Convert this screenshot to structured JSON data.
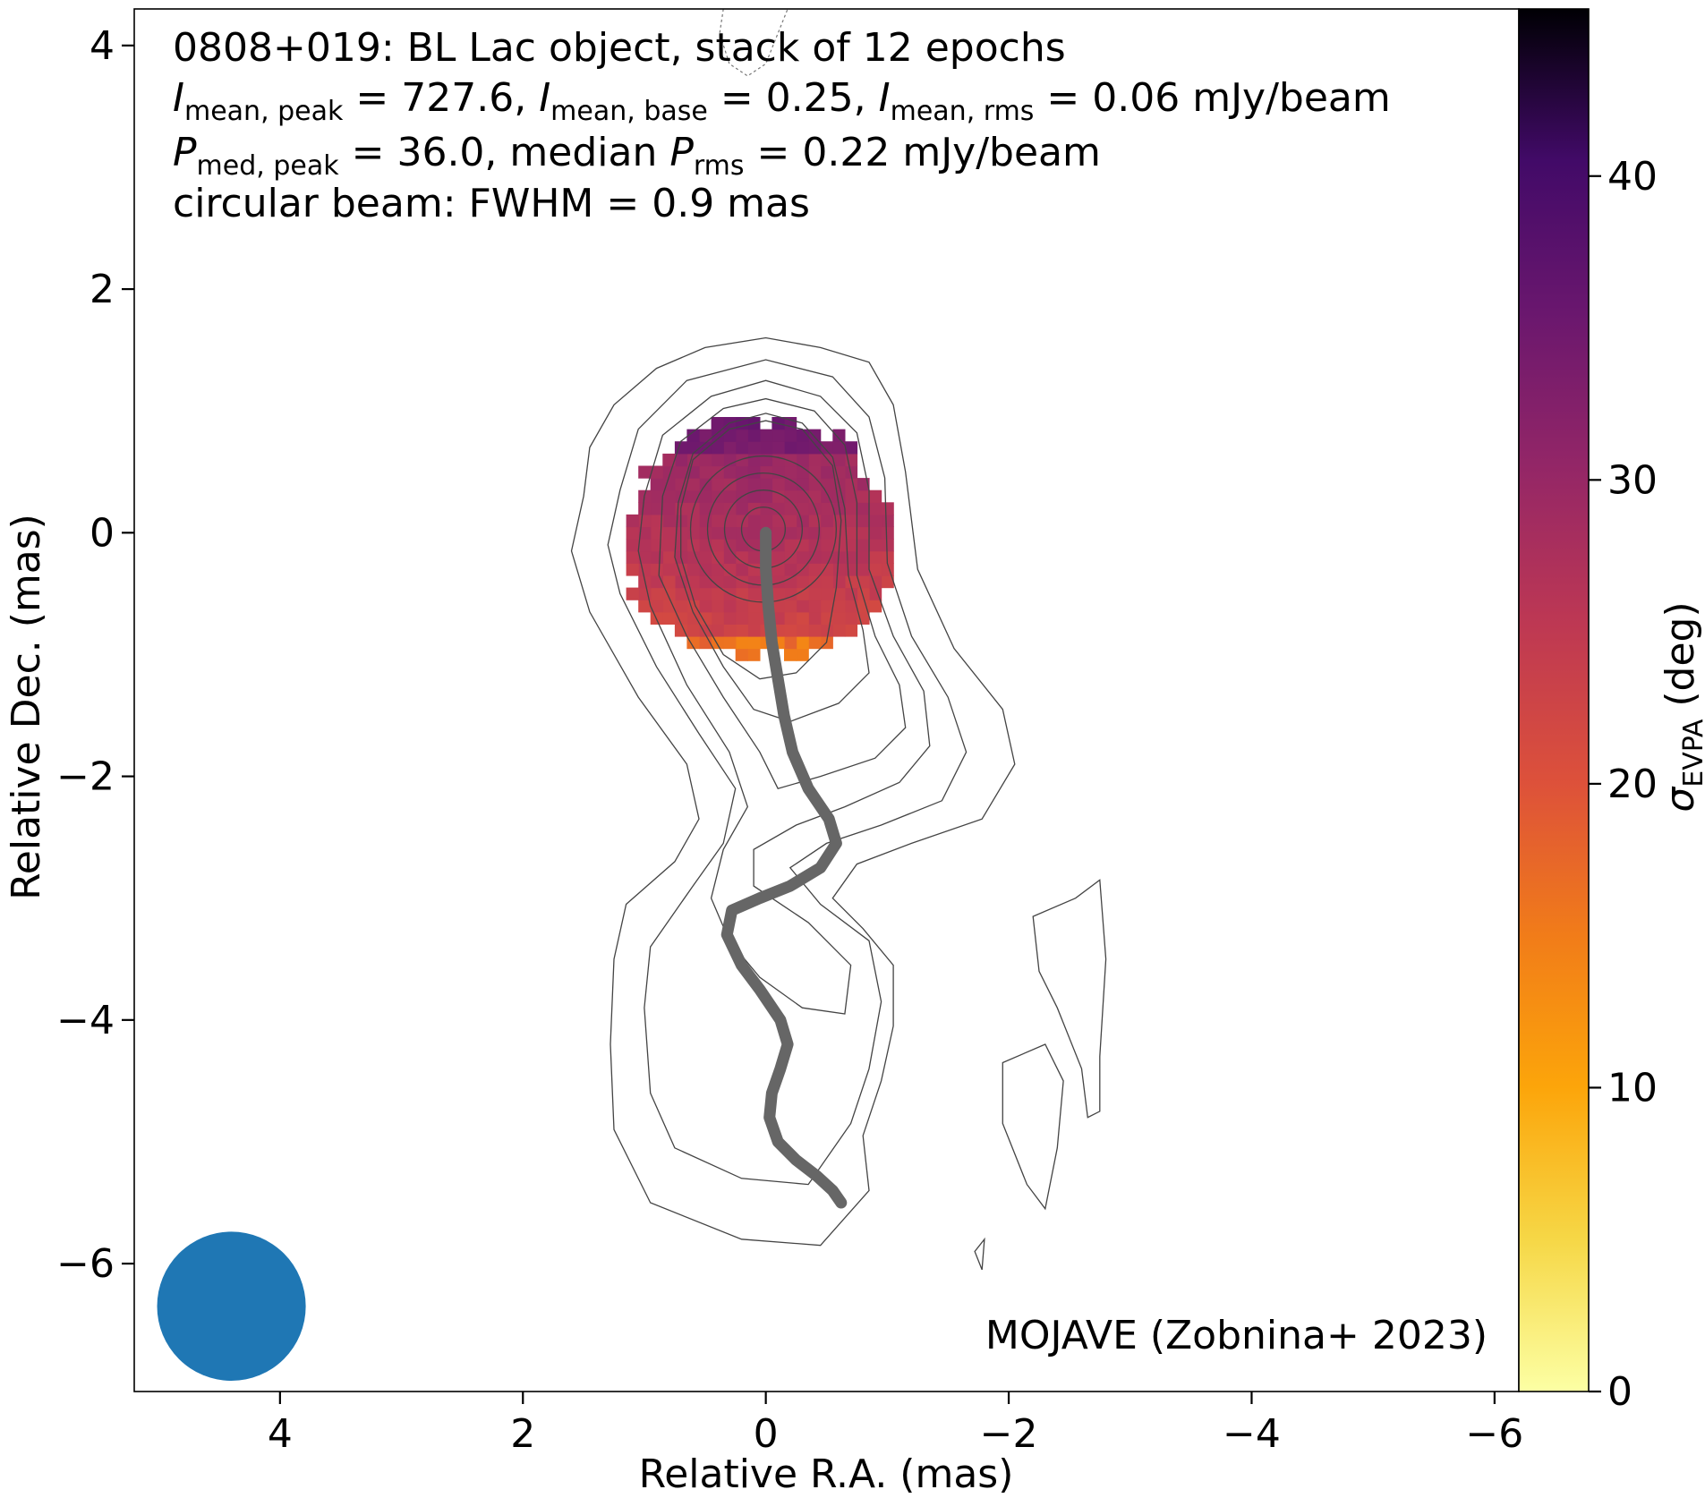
{
  "chart_data": {
    "type": "heatmap",
    "title": "0808+019: BL Lac object, stack of 12 epochs",
    "info_lines": [
      "I_mean,peak = 727.6, I_mean,base = 0.25, I_mean,rms = 0.06 mJy/beam",
      "P_med,peak = 36.0, median P_rms = 0.22 mJy/beam",
      "circular beam: FWHM = 0.9 mas"
    ],
    "xlabel": "Relative R.A. (mas)",
    "ylabel": "Relative Dec. (mas)",
    "xlim": [
      5.2,
      -6.2
    ],
    "ylim": [
      -7.05,
      4.3
    ],
    "xticks": [
      4,
      2,
      0,
      -2,
      -4,
      -6
    ],
    "yticks": [
      4,
      2,
      0,
      -2,
      -4,
      -6
    ],
    "xtick_labels": [
      "4",
      "2",
      "0",
      "−2",
      "−4",
      "−6"
    ],
    "ytick_labels": [
      "4",
      "2",
      "0",
      "−2",
      "−4",
      "−6"
    ],
    "credit": "MOJAVE (Zobnina+ 2023)",
    "colorbar": {
      "label": "σEVPA (deg)",
      "label_main": "σ",
      "label_sub": "EVPA",
      "label_unit": " (deg)",
      "range": [
        0,
        45.5
      ],
      "ticks": [
        0,
        10,
        20,
        30,
        40
      ],
      "tick_labels": [
        "0",
        "10",
        "20",
        "30",
        "40"
      ],
      "colormap": "inferno_r"
    },
    "beam": {
      "ra": 4.4,
      "dec": -6.35,
      "fwhm_mas": 0.9,
      "color": "#1f77b4"
    },
    "polarization_region": {
      "center": [
        0.05,
        -0.15
      ],
      "radius_mas": 1.1,
      "sigma_evpa_top_deg": 36,
      "sigma_evpa_center_deg": 27,
      "sigma_evpa_edge_deg": 22,
      "sigma_evpa_bottom_deg": 8
    },
    "ridge_line": {
      "color": "#666666",
      "ra": [
        0.0,
        0.0,
        -0.02,
        -0.05,
        -0.1,
        -0.15,
        -0.22,
        -0.35,
        -0.52,
        -0.58,
        -0.45,
        -0.2,
        0.05,
        0.28,
        0.32,
        0.2,
        0.05,
        -0.12,
        -0.18,
        -0.12,
        -0.05,
        -0.03,
        -0.1,
        -0.25,
        -0.42,
        -0.55,
        -0.62
      ],
      "dec": [
        0.0,
        -0.3,
        -0.6,
        -0.9,
        -1.2,
        -1.5,
        -1.8,
        -2.1,
        -2.35,
        -2.55,
        -2.75,
        -2.9,
        -3.0,
        -3.1,
        -3.3,
        -3.55,
        -3.75,
        -4.0,
        -4.2,
        -4.4,
        -4.6,
        -4.8,
        -5.0,
        -5.15,
        -5.28,
        -5.4,
        -5.5
      ]
    },
    "contours": [
      [
        [
          1.5,
          0.3
        ],
        [
          1.45,
          0.7
        ],
        [
          1.25,
          1.05
        ],
        [
          0.9,
          1.35
        ],
        [
          0.5,
          1.52
        ],
        [
          0.0,
          1.6
        ],
        [
          -0.45,
          1.52
        ],
        [
          -0.85,
          1.4
        ],
        [
          -1.05,
          1.05
        ],
        [
          -1.15,
          0.5
        ],
        [
          -1.25,
          -0.3
        ],
        [
          -1.55,
          -0.95
        ],
        [
          -1.95,
          -1.45
        ],
        [
          -2.05,
          -1.9
        ],
        [
          -1.78,
          -2.35
        ],
        [
          -1.2,
          -2.55
        ],
        [
          -0.75,
          -2.72
        ],
        [
          -0.55,
          -3.0
        ],
        [
          -0.8,
          -3.25
        ],
        [
          -1.05,
          -3.55
        ],
        [
          -1.05,
          -4.05
        ],
        [
          -0.95,
          -4.5
        ],
        [
          -0.8,
          -4.95
        ],
        [
          -0.85,
          -5.4
        ],
        [
          -0.45,
          -5.85
        ],
        [
          0.2,
          -5.8
        ],
        [
          0.95,
          -5.5
        ],
        [
          1.25,
          -4.9
        ],
        [
          1.28,
          -4.2
        ],
        [
          1.25,
          -3.5
        ],
        [
          1.15,
          -3.05
        ],
        [
          0.75,
          -2.7
        ],
        [
          0.55,
          -2.35
        ],
        [
          0.65,
          -1.9
        ],
        [
          1.05,
          -1.35
        ],
        [
          1.45,
          -0.65
        ],
        [
          1.6,
          -0.15
        ],
        [
          1.5,
          0.3
        ]
      ],
      [
        [
          1.2,
          0.35
        ],
        [
          1.05,
          0.85
        ],
        [
          0.65,
          1.25
        ],
        [
          0.0,
          1.42
        ],
        [
          -0.55,
          1.28
        ],
        [
          -0.85,
          0.95
        ],
        [
          -0.98,
          0.45
        ],
        [
          -1.0,
          -0.25
        ],
        [
          -1.2,
          -0.85
        ],
        [
          -1.5,
          -1.35
        ],
        [
          -1.65,
          -1.8
        ],
        [
          -1.45,
          -2.2
        ],
        [
          -0.95,
          -2.4
        ],
        [
          -0.5,
          -2.55
        ],
        [
          -0.2,
          -2.75
        ],
        [
          -0.45,
          -3.05
        ],
        [
          -0.85,
          -3.35
        ],
        [
          -0.95,
          -3.85
        ],
        [
          -0.85,
          -4.4
        ],
        [
          -0.7,
          -4.85
        ],
        [
          -0.35,
          -5.35
        ],
        [
          0.2,
          -5.3
        ],
        [
          0.75,
          -5.05
        ],
        [
          0.95,
          -4.6
        ],
        [
          1.0,
          -3.9
        ],
        [
          0.95,
          -3.4
        ],
        [
          0.6,
          -2.9
        ],
        [
          0.35,
          -2.55
        ],
        [
          0.25,
          -2.1
        ],
        [
          0.55,
          -1.65
        ],
        [
          0.9,
          -1.1
        ],
        [
          1.2,
          -0.5
        ],
        [
          1.3,
          -0.1
        ],
        [
          1.2,
          0.35
        ]
      ],
      [
        [
          1.0,
          0.3
        ],
        [
          0.85,
          0.8
        ],
        [
          0.45,
          1.12
        ],
        [
          0.0,
          1.25
        ],
        [
          -0.45,
          1.12
        ],
        [
          -0.75,
          0.82
        ],
        [
          -0.85,
          0.35
        ],
        [
          -0.85,
          -0.3
        ],
        [
          -1.05,
          -0.85
        ],
        [
          -1.3,
          -1.3
        ],
        [
          -1.35,
          -1.75
        ],
        [
          -1.1,
          -2.05
        ],
        [
          -0.65,
          -2.25
        ],
        [
          -0.25,
          -2.4
        ],
        [
          0.1,
          -2.6
        ],
        [
          0.1,
          -2.9
        ],
        [
          -0.35,
          -3.2
        ],
        [
          -0.7,
          -3.55
        ],
        [
          -0.65,
          -3.95
        ],
        [
          -0.3,
          -3.9
        ],
        [
          0.05,
          -3.65
        ],
        [
          0.3,
          -3.35
        ],
        [
          0.45,
          -3.0
        ],
        [
          0.35,
          -2.6
        ],
        [
          0.15,
          -2.25
        ],
        [
          0.3,
          -1.8
        ],
        [
          0.65,
          -1.25
        ],
        [
          0.95,
          -0.6
        ],
        [
          1.05,
          -0.15
        ],
        [
          1.0,
          0.3
        ]
      ],
      [
        [
          0.85,
          0.3
        ],
        [
          0.7,
          0.75
        ],
        [
          0.35,
          1.02
        ],
        [
          0.0,
          1.1
        ],
        [
          -0.4,
          1.0
        ],
        [
          -0.65,
          0.72
        ],
        [
          -0.75,
          0.25
        ],
        [
          -0.75,
          -0.35
        ],
        [
          -0.9,
          -0.85
        ],
        [
          -1.1,
          -1.25
        ],
        [
          -1.15,
          -1.6
        ],
        [
          -0.9,
          -1.85
        ],
        [
          -0.45,
          -2.0
        ],
        [
          -0.1,
          -2.1
        ],
        [
          0.05,
          -1.8
        ],
        [
          0.35,
          -1.35
        ],
        [
          0.65,
          -0.85
        ],
        [
          0.88,
          -0.35
        ],
        [
          0.85,
          0.3
        ]
      ],
      [
        [
          0.72,
          0.25
        ],
        [
          0.6,
          0.65
        ],
        [
          0.3,
          0.9
        ],
        [
          0.0,
          0.98
        ],
        [
          -0.3,
          0.9
        ],
        [
          -0.55,
          0.62
        ],
        [
          -0.65,
          0.2
        ],
        [
          -0.68,
          -0.35
        ],
        [
          -0.8,
          -0.8
        ],
        [
          -0.85,
          -1.15
        ],
        [
          -0.6,
          -1.4
        ],
        [
          -0.2,
          -1.55
        ],
        [
          0.1,
          -1.45
        ],
        [
          0.35,
          -1.1
        ],
        [
          0.6,
          -0.65
        ],
        [
          0.75,
          -0.2
        ],
        [
          0.72,
          0.25
        ]
      ],
      [
        [
          0.7,
          0.2
        ],
        [
          0.6,
          0.6
        ],
        [
          0.3,
          0.85
        ],
        [
          0.0,
          0.92
        ],
        [
          -0.3,
          0.85
        ],
        [
          -0.55,
          0.55
        ],
        [
          -0.62,
          0.1
        ],
        [
          -0.58,
          -0.45
        ],
        [
          -0.5,
          -0.9
        ],
        [
          -0.25,
          -1.15
        ],
        [
          0.05,
          -1.2
        ],
        [
          0.35,
          -1.0
        ],
        [
          0.58,
          -0.6
        ],
        [
          0.7,
          -0.2
        ],
        [
          0.7,
          0.2
        ]
      ],
      [
        [
          -2.2,
          -3.15
        ],
        [
          -2.55,
          -3.0
        ],
        [
          -2.75,
          -2.85
        ],
        [
          -2.8,
          -3.5
        ],
        [
          -2.75,
          -4.3
        ],
        [
          -2.75,
          -4.75
        ],
        [
          -2.65,
          -4.8
        ],
        [
          -2.6,
          -4.4
        ],
        [
          -2.4,
          -3.9
        ],
        [
          -2.25,
          -3.6
        ],
        [
          -2.2,
          -3.15
        ]
      ],
      [
        [
          -1.95,
          -4.35
        ],
        [
          -2.3,
          -4.2
        ],
        [
          -2.45,
          -4.5
        ],
        [
          -2.4,
          -5.05
        ],
        [
          -2.3,
          -5.55
        ],
        [
          -2.15,
          -5.35
        ],
        [
          -1.95,
          -4.85
        ],
        [
          -1.95,
          -4.35
        ]
      ],
      [
        [
          -1.72,
          -5.9
        ],
        [
          -1.8,
          -5.8
        ],
        [
          -1.78,
          -6.05
        ],
        [
          -1.72,
          -5.9
        ]
      ]
    ],
    "negative_contours": [
      [
        [
          0.35,
          4.3
        ],
        [
          0.38,
          4.1
        ],
        [
          0.3,
          3.85
        ],
        [
          0.15,
          3.75
        ],
        [
          0.0,
          3.85
        ],
        [
          -0.1,
          4.1
        ],
        [
          -0.18,
          4.3
        ]
      ]
    ]
  }
}
